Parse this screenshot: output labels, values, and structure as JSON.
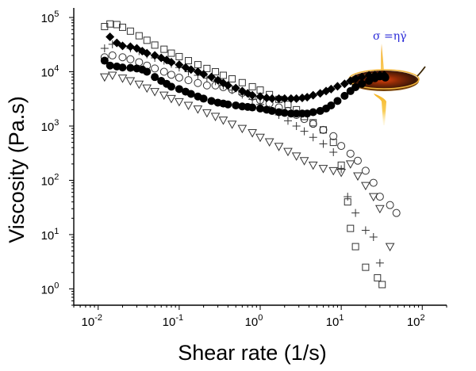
{
  "chart_data": {
    "type": "scatter",
    "xlabel": "Shear rate (1/s)",
    "ylabel": "Viscosity (Pa.s)",
    "x_scale": "log",
    "y_scale": "log",
    "xlim": [
      0.005,
      200
    ],
    "ylim": [
      0.5,
      150000
    ],
    "x_ticks": [
      {
        "base": "10",
        "exp": "-2",
        "value": 0.01
      },
      {
        "base": "10",
        "exp": "-1",
        "value": 0.1
      },
      {
        "base": "10",
        "exp": "0",
        "value": 1
      },
      {
        "base": "10",
        "exp": "1",
        "value": 10
      },
      {
        "base": "10",
        "exp": "2",
        "value": 100
      }
    ],
    "y_ticks": [
      {
        "base": "10",
        "exp": "0",
        "value": 1
      },
      {
        "base": "10",
        "exp": "1",
        "value": 10
      },
      {
        "base": "10",
        "exp": "2",
        "value": 100
      },
      {
        "base": "10",
        "exp": "3",
        "value": 1000
      },
      {
        "base": "10",
        "exp": "4",
        "value": 10000
      },
      {
        "base": "10",
        "exp": "5",
        "value": 100000
      }
    ],
    "grid": false,
    "legend": "none",
    "annotation": "σ =ηγ̇",
    "series": [
      {
        "marker": "square-open",
        "color": "#333333",
        "points": [
          [
            0.012,
            68000
          ],
          [
            0.014,
            76000
          ],
          [
            0.017,
            74000
          ],
          [
            0.02,
            66000
          ],
          [
            0.025,
            56000
          ],
          [
            0.032,
            46000
          ],
          [
            0.04,
            38000
          ],
          [
            0.05,
            31000
          ],
          [
            0.065,
            26000
          ],
          [
            0.08,
            22000
          ],
          [
            0.1,
            19000
          ],
          [
            0.13,
            16000
          ],
          [
            0.17,
            13500
          ],
          [
            0.22,
            11500
          ],
          [
            0.28,
            10000
          ],
          [
            0.35,
            8600
          ],
          [
            0.45,
            7400
          ],
          [
            0.6,
            6300
          ],
          [
            0.8,
            5300
          ],
          [
            1.0,
            4600
          ],
          [
            1.3,
            3800
          ],
          [
            1.7,
            3100
          ],
          [
            2.2,
            2500
          ],
          [
            2.8,
            2000
          ],
          [
            3.5,
            1500
          ],
          [
            4.5,
            1150
          ],
          [
            6,
            850
          ],
          [
            8,
            500
          ],
          [
            10,
            190
          ],
          [
            12,
            40
          ],
          [
            13,
            13
          ],
          [
            15,
            6
          ],
          [
            20,
            2.5
          ],
          [
            28,
            1.6
          ],
          [
            32,
            1.2
          ]
        ]
      },
      {
        "marker": "plus",
        "color": "#333333",
        "points": [
          [
            0.012,
            27000
          ],
          [
            0.015,
            32000
          ],
          [
            0.02,
            30000
          ],
          [
            0.025,
            27000
          ],
          [
            0.032,
            24000
          ],
          [
            0.04,
            21000
          ],
          [
            0.05,
            18000
          ],
          [
            0.065,
            16000
          ],
          [
            0.08,
            14000
          ],
          [
            0.1,
            12000
          ],
          [
            0.13,
            10000
          ],
          [
            0.17,
            8600
          ],
          [
            0.22,
            7600
          ],
          [
            0.28,
            6700
          ],
          [
            0.35,
            5600
          ],
          [
            0.45,
            4600
          ],
          [
            0.6,
            3800
          ],
          [
            0.8,
            3100
          ],
          [
            1.0,
            2500
          ],
          [
            1.3,
            2000
          ],
          [
            1.7,
            1600
          ],
          [
            2.2,
            1250
          ],
          [
            2.8,
            1000
          ],
          [
            3.5,
            800
          ],
          [
            4.5,
            620
          ],
          [
            6,
            470
          ],
          [
            8,
            330
          ],
          [
            10,
            160
          ],
          [
            12,
            50
          ],
          [
            15,
            25
          ],
          [
            20,
            12
          ],
          [
            25,
            9
          ],
          [
            30,
            3
          ]
        ]
      },
      {
        "marker": "circle-open",
        "color": "#333333",
        "points": [
          [
            0.012,
            18500
          ],
          [
            0.015,
            20000
          ],
          [
            0.02,
            18500
          ],
          [
            0.025,
            17000
          ],
          [
            0.032,
            15000
          ],
          [
            0.04,
            13000
          ],
          [
            0.05,
            11500
          ],
          [
            0.065,
            10000
          ],
          [
            0.08,
            8800
          ],
          [
            0.1,
            7800
          ],
          [
            0.13,
            7000
          ],
          [
            0.17,
            6200
          ],
          [
            0.22,
            5600
          ],
          [
            0.28,
            5600
          ],
          [
            0.35,
            5200
          ],
          [
            0.45,
            4700
          ],
          [
            0.6,
            4100
          ],
          [
            0.8,
            3500
          ],
          [
            1.0,
            3000
          ],
          [
            1.3,
            2600
          ],
          [
            1.7,
            2200
          ],
          [
            2.2,
            1900
          ],
          [
            2.8,
            1600
          ],
          [
            3.5,
            1350
          ],
          [
            4.5,
            1100
          ],
          [
            6,
            850
          ],
          [
            8,
            650
          ],
          [
            10,
            430
          ],
          [
            13,
            310
          ],
          [
            16,
            230
          ],
          [
            20,
            150
          ],
          [
            25,
            90
          ],
          [
            30,
            50
          ],
          [
            40,
            35
          ],
          [
            48,
            25
          ]
        ]
      },
      {
        "marker": "triangle-down-open",
        "color": "#333333",
        "points": [
          [
            0.012,
            8000
          ],
          [
            0.015,
            8600
          ],
          [
            0.02,
            7600
          ],
          [
            0.025,
            6800
          ],
          [
            0.032,
            5900
          ],
          [
            0.04,
            5000
          ],
          [
            0.05,
            4300
          ],
          [
            0.065,
            3700
          ],
          [
            0.08,
            3200
          ],
          [
            0.1,
            2800
          ],
          [
            0.13,
            2400
          ],
          [
            0.17,
            2050
          ],
          [
            0.22,
            1750
          ],
          [
            0.28,
            1500
          ],
          [
            0.35,
            1280
          ],
          [
            0.45,
            1080
          ],
          [
            0.6,
            900
          ],
          [
            0.8,
            750
          ],
          [
            1.0,
            620
          ],
          [
            1.3,
            510
          ],
          [
            1.7,
            420
          ],
          [
            2.2,
            340
          ],
          [
            2.8,
            280
          ],
          [
            3.5,
            230
          ],
          [
            4.5,
            190
          ],
          [
            6,
            165
          ],
          [
            8,
            150
          ],
          [
            10,
            140
          ],
          [
            13,
            200
          ],
          [
            16,
            120
          ],
          [
            20,
            80
          ],
          [
            25,
            50
          ],
          [
            30,
            30
          ],
          [
            40,
            6
          ]
        ]
      },
      {
        "marker": "diamond-filled",
        "color": "#000000",
        "points": [
          [
            0.014,
            44000
          ],
          [
            0.017,
            34000
          ],
          [
            0.02,
            30000
          ],
          [
            0.025,
            29000
          ],
          [
            0.03,
            27000
          ],
          [
            0.035,
            24000
          ],
          [
            0.04,
            22000
          ],
          [
            0.05,
            20000
          ],
          [
            0.06,
            18000
          ],
          [
            0.07,
            16500
          ],
          [
            0.08,
            15000
          ],
          [
            0.1,
            13500
          ],
          [
            0.12,
            12000
          ],
          [
            0.14,
            11000
          ],
          [
            0.17,
            10000
          ],
          [
            0.2,
            9000
          ],
          [
            0.25,
            8000
          ],
          [
            0.3,
            7000
          ],
          [
            0.35,
            6200
          ],
          [
            0.4,
            5600
          ],
          [
            0.5,
            5000
          ],
          [
            0.6,
            4400
          ],
          [
            0.7,
            4000
          ],
          [
            0.8,
            3700
          ],
          [
            1.0,
            3500
          ],
          [
            1.2,
            3300
          ],
          [
            1.4,
            3200
          ],
          [
            1.7,
            3200
          ],
          [
            2.0,
            3200
          ],
          [
            2.4,
            3200
          ],
          [
            2.8,
            3200
          ],
          [
            3.3,
            3300
          ],
          [
            3.8,
            3400
          ],
          [
            4.5,
            3700
          ],
          [
            5.5,
            4000
          ],
          [
            6.5,
            4400
          ],
          [
            7.5,
            4800
          ],
          [
            9,
            5400
          ],
          [
            11,
            6000
          ],
          [
            13,
            6800
          ],
          [
            15,
            7400
          ],
          [
            18,
            8000
          ],
          [
            22,
            8600
          ],
          [
            26,
            8700
          ],
          [
            30,
            8700
          ],
          [
            34,
            8700
          ]
        ]
      },
      {
        "marker": "circle-filled",
        "color": "#000000",
        "points": [
          [
            0.012,
            16000
          ],
          [
            0.014,
            13000
          ],
          [
            0.017,
            12500
          ],
          [
            0.02,
            12000
          ],
          [
            0.025,
            11800
          ],
          [
            0.03,
            11500
          ],
          [
            0.035,
            11000
          ],
          [
            0.04,
            10000
          ],
          [
            0.05,
            8000
          ],
          [
            0.06,
            6800
          ],
          [
            0.07,
            6000
          ],
          [
            0.08,
            5300
          ],
          [
            0.1,
            4800
          ],
          [
            0.12,
            4300
          ],
          [
            0.14,
            3900
          ],
          [
            0.17,
            3500
          ],
          [
            0.2,
            3200
          ],
          [
            0.25,
            2900
          ],
          [
            0.3,
            2700
          ],
          [
            0.35,
            2600
          ],
          [
            0.4,
            2500
          ],
          [
            0.5,
            2400
          ],
          [
            0.6,
            2300
          ],
          [
            0.7,
            2250
          ],
          [
            0.8,
            2200
          ],
          [
            1.0,
            2100
          ],
          [
            1.2,
            2000
          ],
          [
            1.4,
            1900
          ],
          [
            1.7,
            1800
          ],
          [
            2.0,
            1750
          ],
          [
            2.4,
            1700
          ],
          [
            2.8,
            1700
          ],
          [
            3.3,
            1700
          ],
          [
            3.8,
            1700
          ],
          [
            4.5,
            1800
          ],
          [
            5.5,
            1900
          ],
          [
            6.5,
            2100
          ],
          [
            7.5,
            2400
          ],
          [
            9,
            2900
          ],
          [
            11,
            3600
          ],
          [
            13,
            4400
          ],
          [
            15,
            5200
          ],
          [
            18,
            6000
          ],
          [
            22,
            6800
          ],
          [
            26,
            7600
          ],
          [
            30,
            8200
          ],
          [
            35,
            7800
          ]
        ]
      }
    ]
  }
}
